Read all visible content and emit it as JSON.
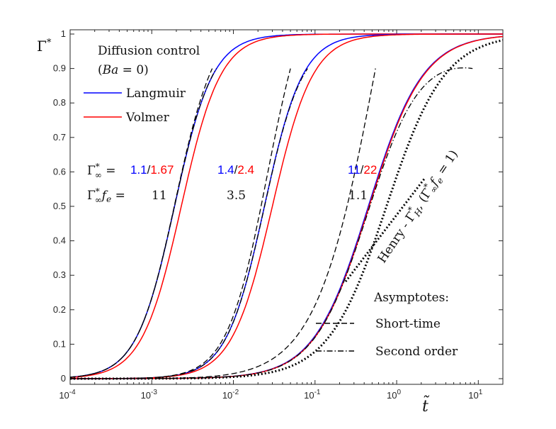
{
  "chart_data": {
    "type": "line",
    "title": "",
    "xlabel": "t̃",
    "ylabel": "Γ*",
    "xscale": "log",
    "xlim": [
      0.0001,
      20
    ],
    "ylim": [
      0,
      1.02
    ],
    "xticks": [
      {
        "exp": "-4",
        "value": 0.0001
      },
      {
        "exp": "-3",
        "value": 0.001
      },
      {
        "exp": "-2",
        "value": 0.01
      },
      {
        "exp": "-1",
        "value": 0.1
      },
      {
        "exp": "0",
        "value": 1
      },
      {
        "exp": "1",
        "value": 10
      }
    ],
    "yticks": [
      "0",
      "0.1",
      "0.2",
      "0.3",
      "0.4",
      "0.5",
      "0.6",
      "0.7",
      "0.8",
      "0.9",
      "1"
    ],
    "colors": {
      "langmuir": "#0000ff",
      "volmer": "#ff0000",
      "asymptote": "#000000"
    },
    "groups": [
      {
        "gamma_inf_langmuir": "1.1",
        "gamma_inf_volmer": "1.67",
        "gamma_inf_fe": "11",
        "langmuir": {
          "t50": 0.0019,
          "k": 1.85
        },
        "volmer": {
          "t50": 0.0023,
          "k": 1.8
        },
        "short_time": {
          "x_end": 0.0055,
          "y_end": 0.9
        },
        "second_order": {
          "x_end": 0.0062,
          "y_end": 0.9
        }
      },
      {
        "gamma_inf_langmuir": "1.4",
        "gamma_inf_volmer": "2.4",
        "gamma_inf_fe": "3.5",
        "langmuir": {
          "t50": 0.024,
          "k": 1.85
        },
        "volmer": {
          "t50": 0.03,
          "k": 1.75
        },
        "short_time": {
          "x_end": 0.05,
          "y_end": 0.9
        },
        "second_order": {
          "x_end": 0.081,
          "y_end": 0.9
        }
      },
      {
        "gamma_inf_langmuir": "11",
        "gamma_inf_volmer": "22",
        "gamma_inf_fe": "1.1",
        "langmuir": {
          "t50": 0.45,
          "k": 1.3
        },
        "volmer": {
          "t50": 0.46,
          "k": 1.3
        },
        "short_time": {
          "x_end": 0.55,
          "y_end": 0.9
        },
        "second_order": {
          "x_end": 8.5,
          "y_end": 0.9
        }
      }
    ],
    "henry": {
      "t50": 0.75,
      "k": 1.22,
      "label": "Henry - Γ*_H, (Γ*∞ f_e = 1)"
    },
    "legend": {
      "title": "Diffusion control",
      "subtitle": "(Ba = 0)",
      "position": "top-left",
      "entries": [
        "Langmuir",
        "Volmer"
      ]
    },
    "legend2": {
      "title": "Asymptotes:",
      "position": "bottom-right",
      "entries": [
        "Short-time",
        "Second order"
      ]
    },
    "annotations": {
      "gamma_inf_label": "Γ*∞ =",
      "gamma_inf_fe_label": "Γ*∞ fe ="
    }
  }
}
